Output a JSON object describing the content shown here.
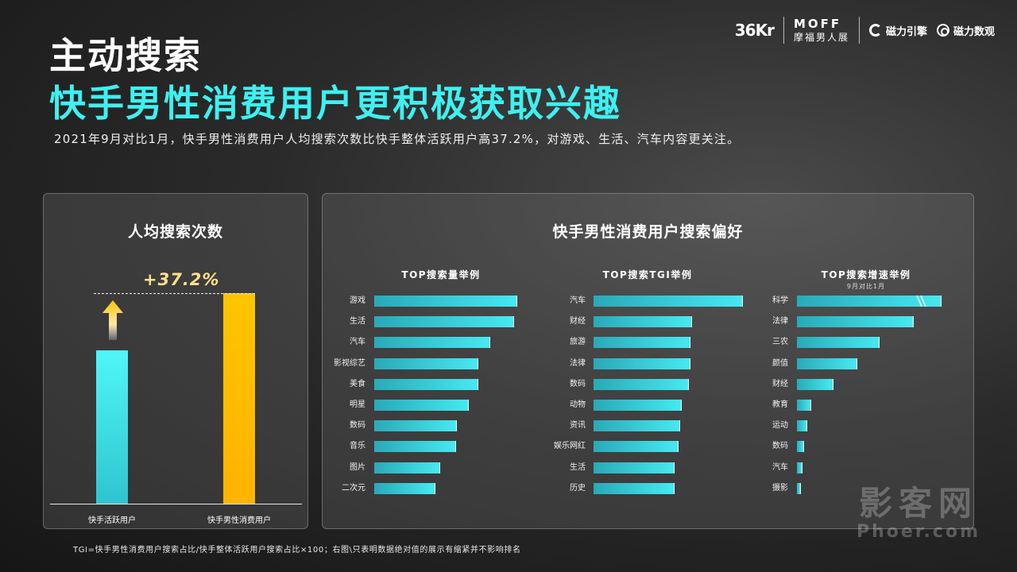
{
  "logos": {
    "kr": "36Kr",
    "moff": "MOFF",
    "moff_cn": "摩福男人展",
    "cili_engine": "磁力引擎",
    "cili_data": "磁力数观"
  },
  "title_line1": "主动搜索",
  "title_line2": "快手男性消费用户更积极获取兴趣",
  "subtitle": "2021年9月对比1月，快手男性消费用户人均搜索次数比快手整体活跃用户高37.2%，对游戏、生活、汽车内容更关注。",
  "footnote": "TGI=快手男性消费用户搜索占比/快手整体活跃用户搜索占比×100；右图\\只表明数据绝对值的展示有缩紧并不影响排名",
  "watermark": {
    "cn": "影客网",
    "en": "Phoer.com"
  },
  "colors": {
    "cyan": "#46e9f2",
    "gold": "#ffc400",
    "title_accent": "#3ef0f0"
  },
  "chart_data": [
    {
      "type": "bar",
      "title": "人均搜索次数",
      "categories": [
        "快手活跃用户",
        "快手男性消费用户"
      ],
      "values": [
        100,
        137.2
      ],
      "annotation": "+37.2%",
      "ylim": [
        0,
        150
      ]
    },
    {
      "type": "bar",
      "orientation": "horizontal",
      "group_title": "快手男性消费用户搜索偏好",
      "title": "TOP搜索量举例",
      "categories": [
        "游戏",
        "生活",
        "汽车",
        "影视综艺",
        "美食",
        "明星",
        "数码",
        "音乐",
        "图片",
        "二次元"
      ],
      "values": [
        100,
        98,
        81,
        73,
        73,
        66,
        58,
        57,
        46,
        43
      ]
    },
    {
      "type": "bar",
      "orientation": "horizontal",
      "title": "TOP搜索TGI举例",
      "categories": [
        "汽车",
        "财经",
        "旅游",
        "法律",
        "数码",
        "动物",
        "资讯",
        "娱乐网红",
        "生活",
        "历史"
      ],
      "values": [
        100,
        66,
        65,
        65,
        64,
        59,
        58,
        57,
        54,
        54
      ]
    },
    {
      "type": "bar",
      "orientation": "horizontal",
      "title": "TOP搜索增速举例",
      "subtitle": "9月对比1月",
      "categories": [
        "科学",
        "法律",
        "三农",
        "颜值",
        "财经",
        "教育",
        "运动",
        "数码",
        "汽车",
        "摄影"
      ],
      "values": [
        100,
        81,
        57,
        42,
        25,
        10,
        7,
        5,
        4,
        3
      ],
      "truncated_first_bar": true
    }
  ]
}
